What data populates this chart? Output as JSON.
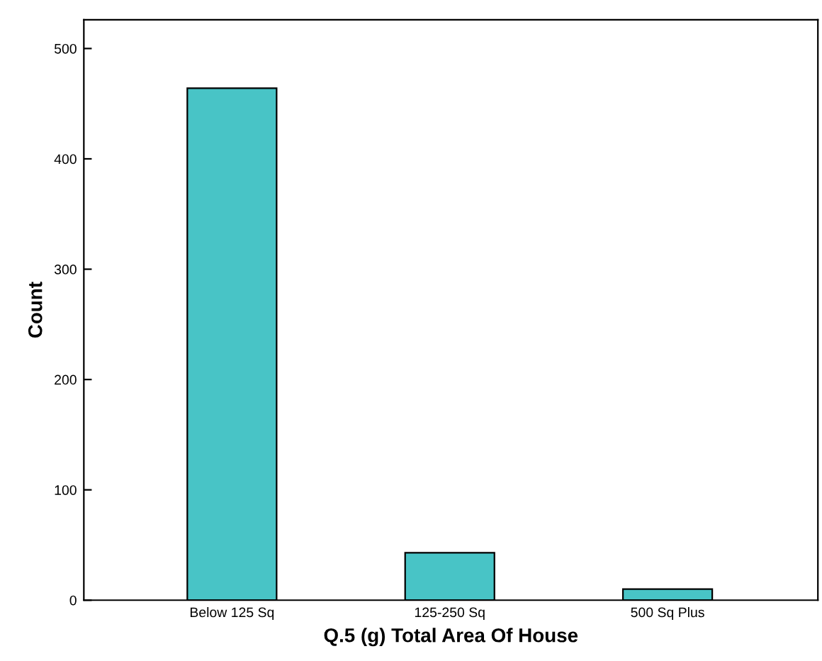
{
  "chart_data": {
    "type": "bar",
    "xlabel": "Q.5 (g) Total Area Of House",
    "ylabel": "Count",
    "categories": [
      "Below 125 Sq",
      "125-250 Sq",
      "500 Sq Plus"
    ],
    "values": [
      464,
      43,
      10
    ],
    "color": "#48c4c6",
    "ylim": [
      0,
      526
    ],
    "yticks": [
      0,
      100,
      200,
      300,
      400,
      500
    ],
    "grid": false,
    "legend": false
  }
}
